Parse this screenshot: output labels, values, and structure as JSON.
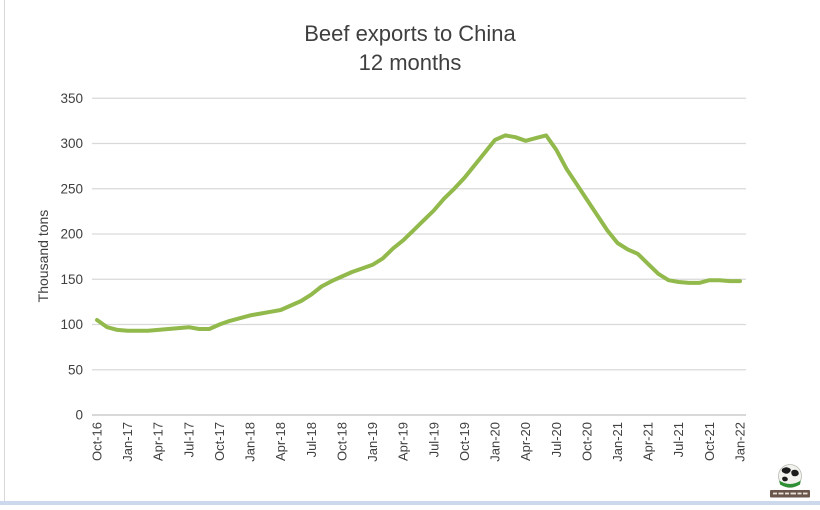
{
  "header": {
    "title": "Beef exports to China",
    "subtitle": "12 months"
  },
  "icons": {
    "logo": "globe-logo-icon"
  },
  "colors": {
    "line": "#92b94c",
    "gridline": "#d9d9d9",
    "axis_line": "#c0c0c0",
    "text": "#404040",
    "bottom_border": "#ccd8ec"
  },
  "chart_data": {
    "type": "line",
    "title": "Beef exports to China",
    "subtitle": "12 months",
    "xlabel": "",
    "ylabel": "Thousand tons",
    "ylim": [
      0,
      350
    ],
    "y_ticks": [
      0,
      50,
      100,
      150,
      200,
      250,
      300,
      350
    ],
    "grid": "horizontal",
    "legend": "none",
    "x_tick_every": 3,
    "x_tick_labels_visible": [
      "Oct-16",
      "Jan-17",
      "Apr-17",
      "Jul-17",
      "Oct-17",
      "Jan-18",
      "Apr-18",
      "Jul-18",
      "Oct-18",
      "Jan-19",
      "Apr-19",
      "Jul-19",
      "Oct-19",
      "Jan-20",
      "Apr-20",
      "Jul-20",
      "Oct-20",
      "Jan-21",
      "Apr-21",
      "Jul-21",
      "Oct-21",
      "Jan-22"
    ],
    "months": [
      "Oct-16",
      "Nov-16",
      "Dec-16",
      "Jan-17",
      "Feb-17",
      "Mar-17",
      "Apr-17",
      "May-17",
      "Jun-17",
      "Jul-17",
      "Aug-17",
      "Sep-17",
      "Oct-17",
      "Nov-17",
      "Dec-17",
      "Jan-18",
      "Feb-18",
      "Mar-18",
      "Apr-18",
      "May-18",
      "Jun-18",
      "Jul-18",
      "Aug-18",
      "Sep-18",
      "Oct-18",
      "Nov-18",
      "Dec-18",
      "Jan-19",
      "Feb-19",
      "Mar-19",
      "Apr-19",
      "May-19",
      "Jun-19",
      "Jul-19",
      "Aug-19",
      "Sep-19",
      "Oct-19",
      "Nov-19",
      "Dec-19",
      "Jan-20",
      "Feb-20",
      "Mar-20",
      "Apr-20",
      "May-20",
      "Jun-20",
      "Jul-20",
      "Aug-20",
      "Sep-20",
      "Oct-20",
      "Nov-20",
      "Dec-20",
      "Jan-21",
      "Feb-21",
      "Mar-21",
      "Apr-21",
      "May-21",
      "Jun-21",
      "Jul-21",
      "Aug-21",
      "Sep-21",
      "Oct-21",
      "Nov-21",
      "Dec-21",
      "Jan-22"
    ],
    "series": [
      {
        "name": "Beef exports to China, 12 months",
        "color": "#92b94c",
        "values": [
          105,
          97,
          94,
          93,
          93,
          93,
          94,
          95,
          96,
          97,
          95,
          95,
          100,
          104,
          107,
          110,
          112,
          114,
          116,
          121,
          126,
          133,
          142,
          148,
          153,
          158,
          162,
          166,
          173,
          184,
          193,
          204,
          215,
          226,
          239,
          250,
          262,
          276,
          290,
          304,
          309,
          307,
          303,
          306,
          309,
          293,
          272,
          255,
          238,
          221,
          204,
          190,
          183,
          178,
          167,
          156,
          149,
          147,
          146,
          146,
          149,
          149,
          148,
          148
        ]
      }
    ]
  }
}
